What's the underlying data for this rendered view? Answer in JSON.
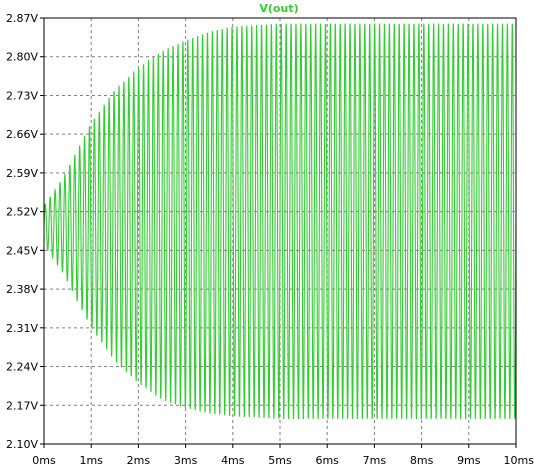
{
  "chart_data": {
    "type": "line",
    "title": "V(out)",
    "xlabel": "",
    "ylabel": "",
    "x_unit": "ms",
    "y_unit": "V",
    "xlim": [
      0,
      10
    ],
    "ylim": [
      2.1,
      2.87
    ],
    "grid": true,
    "x_ticks": [
      0,
      1,
      2,
      3,
      4,
      5,
      6,
      7,
      8,
      9,
      10
    ],
    "x_tick_labels": [
      "0ms",
      "1ms",
      "2ms",
      "3ms",
      "4ms",
      "5ms",
      "6ms",
      "7ms",
      "8ms",
      "9ms",
      "10ms"
    ],
    "y_ticks": [
      2.1,
      2.17,
      2.24,
      2.31,
      2.38,
      2.45,
      2.52,
      2.59,
      2.66,
      2.73,
      2.8,
      2.87
    ],
    "y_tick_labels": [
      "2.10V",
      "2.17V",
      "2.24V",
      "2.31V",
      "2.38V",
      "2.45V",
      "2.52V",
      "2.59V",
      "2.66V",
      "2.73V",
      "2.80V",
      "2.87V"
    ],
    "series": [
      {
        "name": "V(out)",
        "color": "#33cc33",
        "oscillation": {
          "center_v": 2.5,
          "start_v": 2.49,
          "cycles": 96,
          "envelope_max": [
            [
              0.0,
              2.53
            ],
            [
              0.4,
              2.58
            ],
            [
              0.7,
              2.63
            ],
            [
              1.0,
              2.68
            ],
            [
              1.5,
              2.74
            ],
            [
              2.0,
              2.78
            ],
            [
              2.5,
              2.81
            ],
            [
              3.0,
              2.83
            ],
            [
              3.5,
              2.845
            ],
            [
              4.0,
              2.855
            ],
            [
              5.0,
              2.86
            ],
            [
              10.0,
              2.86
            ]
          ],
          "envelope_min": [
            [
              0.0,
              2.46
            ],
            [
              0.4,
              2.41
            ],
            [
              0.7,
              2.36
            ],
            [
              1.0,
              2.31
            ],
            [
              1.5,
              2.25
            ],
            [
              2.0,
              2.21
            ],
            [
              2.5,
              2.18
            ],
            [
              3.0,
              2.165
            ],
            [
              3.5,
              2.155
            ],
            [
              4.0,
              2.15
            ],
            [
              5.0,
              2.145
            ],
            [
              10.0,
              2.145
            ]
          ]
        }
      }
    ]
  }
}
